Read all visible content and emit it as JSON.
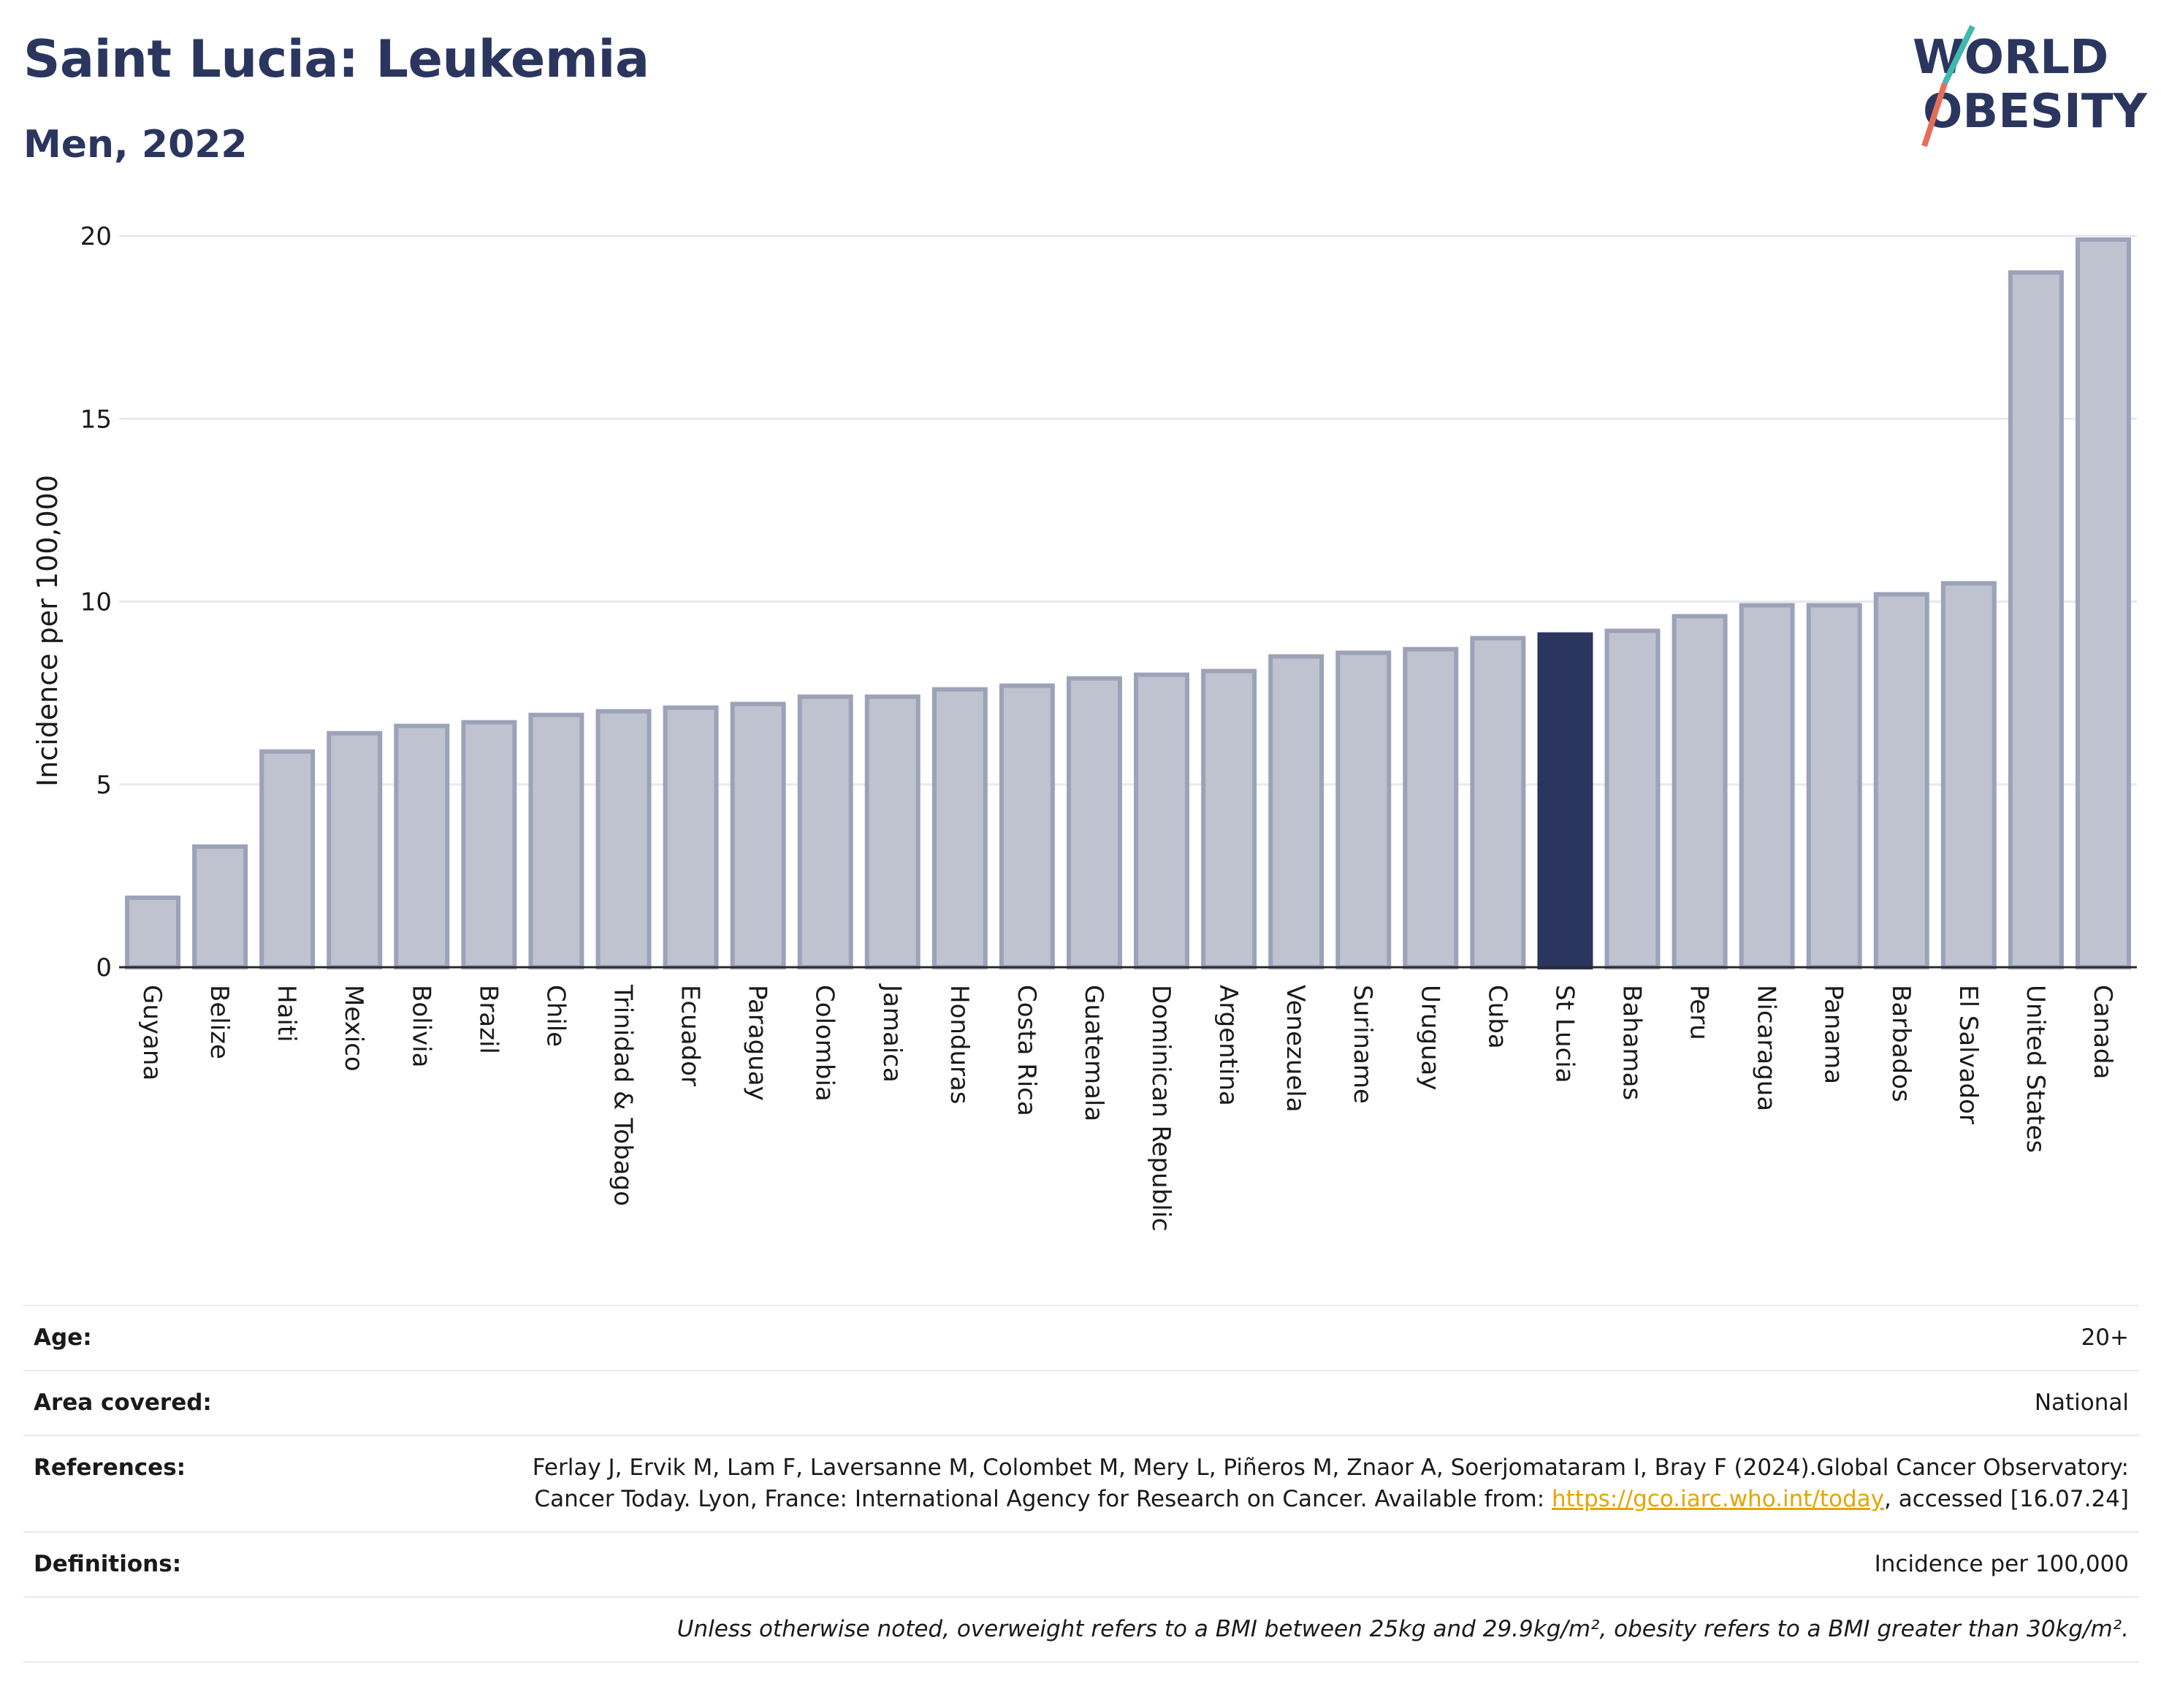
{
  "header": {
    "title": "Saint Lucia: Leukemia",
    "subtitle": "Men, 2022",
    "logo_line1": "WORLD",
    "logo_line2": "OBESITY"
  },
  "chart_data": {
    "type": "bar",
    "ylabel": "Incidence per 100,000",
    "ylim": [
      0,
      20
    ],
    "yticks": [
      0,
      5,
      10,
      15,
      20
    ],
    "grid": true,
    "highlight": "St Lucia",
    "categories": [
      "Guyana",
      "Belize",
      "Haiti",
      "Mexico",
      "Bolivia",
      "Brazil",
      "Chile",
      "Trinidad & Tobago",
      "Ecuador",
      "Paraguay",
      "Colombia",
      "Jamaica",
      "Honduras",
      "Costa Rica",
      "Guatemala",
      "Dominican Republic",
      "Argentina",
      "Venezuela",
      "Suriname",
      "Uruguay",
      "Cuba",
      "St Lucia",
      "Bahamas",
      "Peru",
      "Nicaragua",
      "Panama",
      "Barbados",
      "El Salvador",
      "United States",
      "Canada"
    ],
    "values": [
      1.9,
      3.3,
      5.9,
      6.4,
      6.6,
      6.7,
      6.9,
      7.0,
      7.1,
      7.2,
      7.4,
      7.4,
      7.6,
      7.7,
      7.9,
      8.0,
      8.1,
      8.5,
      8.6,
      8.7,
      9.0,
      9.1,
      9.2,
      9.6,
      9.9,
      9.9,
      10.2,
      10.5,
      19.0,
      19.9
    ],
    "colors": {
      "bar": "#bfc3d0",
      "bar_border": "#9ca2b8",
      "highlight": "#2b365f",
      "grid": "#e6e9ef",
      "axis": "#2b2b2b"
    }
  },
  "info": {
    "age_label": "Age:",
    "age_value": "20+",
    "area_label": "Area covered:",
    "area_value": "National",
    "references_label": "References:",
    "references_text_before": "Ferlay J, Ervik M, Lam F, Laversanne M, Colombet M, Mery L, Piñeros M, Znaor A, Soerjomataram I, Bray F (2024).Global Cancer Observatory: Cancer Today. Lyon, France: International Agency for Research on Cancer. Available from: ",
    "references_link": "https://gco.iarc.who.int/today",
    "references_text_after": ", accessed [16.07.24]",
    "definitions_label": "Definitions:",
    "definitions_value": "Incidence per 100,000",
    "note": "Unless otherwise noted, overweight refers to a BMI between 25kg and 29.9kg/m², obesity refers to a BMI greater than 30kg/m²."
  }
}
